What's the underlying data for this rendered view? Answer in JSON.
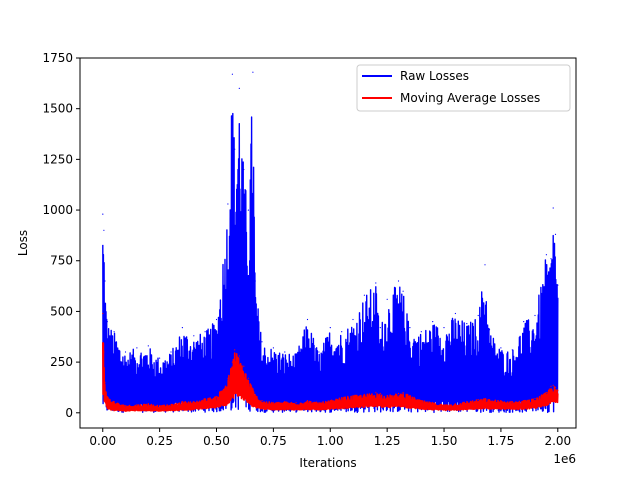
{
  "chart_data": {
    "type": "line",
    "title": "",
    "xlabel": "Iterations",
    "ylabel": "Loss",
    "x_offset_label": "1e6",
    "xlim": [
      -0.1,
      2.08
    ],
    "ylim": [
      -75,
      1750
    ],
    "x_ticks": [
      0.0,
      0.25,
      0.5,
      0.75,
      1.0,
      1.25,
      1.5,
      1.75,
      2.0
    ],
    "x_tick_labels": [
      "0.00",
      "0.25",
      "0.50",
      "0.75",
      "1.00",
      "1.25",
      "1.50",
      "1.75",
      "2.00"
    ],
    "y_ticks": [
      0,
      250,
      500,
      750,
      1000,
      1250,
      1500,
      1750
    ],
    "y_tick_labels": [
      "0",
      "250",
      "500",
      "750",
      "1000",
      "1250",
      "1500",
      "1750"
    ],
    "grid": false,
    "legend": {
      "position": "upper-right"
    },
    "series": [
      {
        "name": "Raw Losses",
        "color": "#0000ff",
        "style": "dense-oscillating",
        "x": [
          0.0,
          0.005,
          0.01,
          0.02,
          0.05,
          0.1,
          0.15,
          0.2,
          0.25,
          0.3,
          0.35,
          0.4,
          0.45,
          0.5,
          0.55,
          0.57,
          0.58,
          0.6,
          0.62,
          0.64,
          0.66,
          0.67,
          0.7,
          0.75,
          0.8,
          0.85,
          0.9,
          0.95,
          1.0,
          1.05,
          1.1,
          1.15,
          1.2,
          1.22,
          1.25,
          1.3,
          1.32,
          1.35,
          1.4,
          1.45,
          1.5,
          1.55,
          1.6,
          1.65,
          1.68,
          1.7,
          1.75,
          1.8,
          1.85,
          1.9,
          1.95,
          1.97,
          1.98,
          1.99,
          2.0
        ],
        "values": [
          980,
          900,
          650,
          450,
          400,
          300,
          320,
          330,
          270,
          300,
          420,
          380,
          400,
          460,
          1030,
          1670,
          1300,
          1600,
          1200,
          1000,
          1680,
          650,
          350,
          320,
          300,
          290,
          460,
          300,
          420,
          400,
          460,
          580,
          640,
          420,
          560,
          650,
          600,
          420,
          400,
          450,
          420,
          490,
          440,
          480,
          730,
          410,
          320,
          310,
          450,
          480,
          780,
          760,
          1010,
          880,
          630
        ],
        "min_values": [
          0,
          5,
          5,
          0,
          2,
          3,
          2,
          2,
          2,
          3,
          3,
          2,
          3,
          2,
          3,
          5,
          10,
          10,
          10,
          8,
          5,
          5,
          3,
          2,
          2,
          3,
          2,
          2,
          2,
          3,
          2,
          2,
          2,
          3,
          2,
          2,
          3,
          2,
          2,
          2,
          2,
          3,
          2,
          2,
          3,
          2,
          2,
          2,
          2,
          3,
          2,
          2,
          3,
          3,
          5
        ]
      },
      {
        "name": "Moving Average Losses",
        "color": "#ff0000",
        "style": "dense-oscillating",
        "x": [
          0.0,
          0.005,
          0.01,
          0.02,
          0.05,
          0.1,
          0.15,
          0.2,
          0.25,
          0.3,
          0.35,
          0.4,
          0.45,
          0.5,
          0.55,
          0.57,
          0.58,
          0.6,
          0.62,
          0.64,
          0.66,
          0.67,
          0.7,
          0.75,
          0.8,
          0.85,
          0.9,
          0.95,
          1.0,
          1.05,
          1.1,
          1.15,
          1.2,
          1.22,
          1.25,
          1.3,
          1.32,
          1.35,
          1.4,
          1.45,
          1.5,
          1.55,
          1.6,
          1.65,
          1.68,
          1.7,
          1.75,
          1.8,
          1.85,
          1.9,
          1.95,
          1.97,
          1.98,
          1.99,
          2.0
        ],
        "values": [
          490,
          300,
          150,
          80,
          55,
          35,
          40,
          45,
          35,
          40,
          55,
          55,
          70,
          80,
          170,
          250,
          310,
          280,
          230,
          170,
          120,
          90,
          60,
          50,
          55,
          50,
          60,
          50,
          60,
          75,
          85,
          90,
          100,
          95,
          85,
          95,
          100,
          85,
          60,
          50,
          40,
          45,
          55,
          65,
          70,
          65,
          60,
          55,
          60,
          70,
          100,
          130,
          135,
          125,
          110
        ],
        "min_values": [
          40,
          60,
          40,
          20,
          10,
          8,
          10,
          10,
          8,
          10,
          12,
          15,
          20,
          25,
          40,
          60,
          80,
          75,
          60,
          45,
          30,
          25,
          18,
          15,
          15,
          14,
          15,
          14,
          18,
          20,
          25,
          28,
          30,
          28,
          25,
          30,
          28,
          22,
          18,
          14,
          12,
          12,
          15,
          18,
          20,
          18,
          18,
          16,
          18,
          22,
          35,
          45,
          50,
          50,
          45
        ]
      }
    ]
  }
}
